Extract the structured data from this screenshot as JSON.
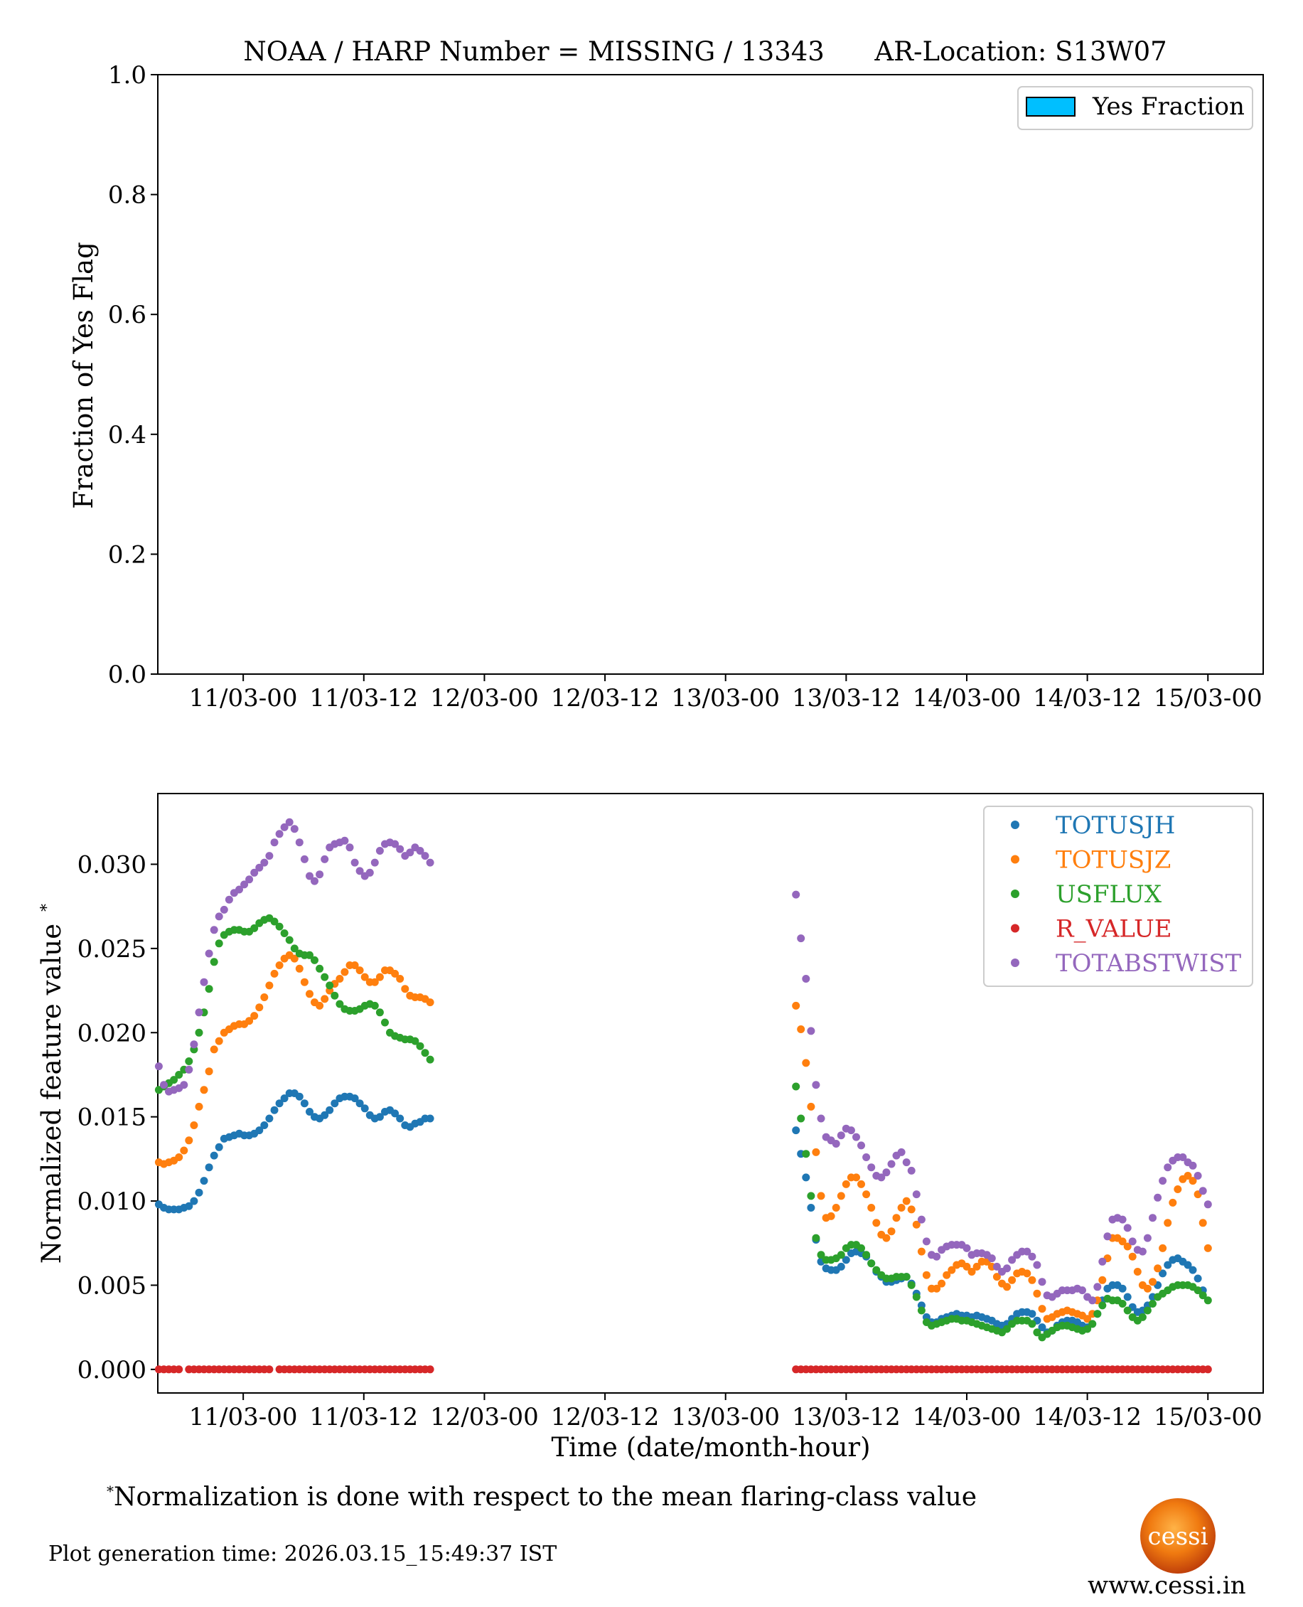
{
  "colors": {
    "TOTUSJH": "#1f77b4",
    "TOTUSJZ": "#ff7f0e",
    "USFLUX": "#2ca02c",
    "R_VALUE": "#d62728",
    "TOTABSTWIST": "#9467bd",
    "yes_fraction": "#00bfff"
  },
  "chart_data": [
    {
      "type": "bar",
      "title": "NOAA / HARP Number = MISSING / 13343      AR-Location: S13W07",
      "xlabel": "",
      "ylabel": "Fraction of Yes Flag",
      "ylim": [
        0,
        1.0
      ],
      "yticks": [
        "0.0",
        "0.2",
        "0.4",
        "0.6",
        "0.8",
        "1.0"
      ],
      "xticks": [
        "11/03-00",
        "11/03-12",
        "12/03-00",
        "12/03-12",
        "13/03-00",
        "13/03-12",
        "14/03-00",
        "14/03-12",
        "15/03-00"
      ],
      "xtick_hours": [
        0,
        12,
        24,
        36,
        48,
        60,
        72,
        84,
        96
      ],
      "xlim_hours": [
        -8.5,
        101.5
      ],
      "legend": [
        "Yes Fraction"
      ],
      "legend_position": "top-right",
      "values": []
    },
    {
      "type": "scatter",
      "title": "",
      "xlabel": "Time (date/month-hour)",
      "ylabel": "Normalized feature value",
      "ylabel_sup": "*",
      "ylim": [
        -0.0014,
        0.0342
      ],
      "yticks": [
        "0.000",
        "0.005",
        "0.010",
        "0.015",
        "0.020",
        "0.025",
        "0.030"
      ],
      "xticks": [
        "11/03-00",
        "11/03-12",
        "12/03-00",
        "12/03-12",
        "13/03-00",
        "13/03-12",
        "14/03-00",
        "14/03-12",
        "15/03-00"
      ],
      "xtick_hours": [
        0,
        12,
        24,
        36,
        48,
        60,
        72,
        84,
        96
      ],
      "xlim_hours": [
        -8.5,
        101.5
      ],
      "legend_position": "top-right",
      "legend": [
        "TOTUSJH",
        "TOTUSJZ",
        "USFLUX",
        "R_VALUE",
        "TOTABSTWIST"
      ],
      "segments": [
        {
          "x_start": -8.4,
          "x_step": 0.5,
          "series": {
            "TOTUSJH": [
              0.0098,
              0.0096,
              0.0095,
              0.0095,
              0.0095,
              0.0096,
              0.0097,
              0.01,
              0.0105,
              0.0112,
              0.012,
              0.0127,
              0.0132,
              0.0137,
              0.0138,
              0.0139,
              0.014,
              0.0139,
              0.0139,
              0.014,
              0.0142,
              0.0145,
              0.0149,
              0.0154,
              0.0158,
              0.0161,
              0.0164,
              0.0164,
              0.0162,
              0.0158,
              0.0153,
              0.015,
              0.0149,
              0.0151,
              0.0154,
              0.0158,
              0.0161,
              0.0162,
              0.0162,
              0.0161,
              0.0158,
              0.0155,
              0.0151,
              0.0149,
              0.015,
              0.0153,
              0.0154,
              0.0152,
              0.0149,
              0.0145,
              0.0144,
              0.0146,
              0.0147,
              0.0149,
              0.0149
            ],
            "TOTUSJZ": [
              0.0123,
              0.0122,
              0.0123,
              0.0124,
              0.0126,
              0.013,
              0.0136,
              0.0145,
              0.0156,
              0.0166,
              0.0177,
              0.019,
              0.0195,
              0.02,
              0.0202,
              0.0204,
              0.0205,
              0.0205,
              0.0207,
              0.021,
              0.0215,
              0.0221,
              0.0228,
              0.0235,
              0.024,
              0.0244,
              0.0246,
              0.0244,
              0.0238,
              0.023,
              0.0223,
              0.0218,
              0.0216,
              0.022,
              0.0225,
              0.0229,
              0.0232,
              0.0236,
              0.024,
              0.024,
              0.0237,
              0.0233,
              0.023,
              0.023,
              0.0233,
              0.0237,
              0.0237,
              0.0235,
              0.0232,
              0.0226,
              0.0222,
              0.0221,
              0.0221,
              0.022,
              0.0218
            ],
            "USFLUX": [
              0.0166,
              0.0168,
              0.017,
              0.0172,
              0.0175,
              0.0178,
              0.0183,
              0.019,
              0.02,
              0.0212,
              0.0226,
              0.0242,
              0.0253,
              0.0258,
              0.026,
              0.0261,
              0.0261,
              0.026,
              0.026,
              0.0262,
              0.0265,
              0.0267,
              0.0268,
              0.0266,
              0.0263,
              0.0259,
              0.0255,
              0.025,
              0.0247,
              0.0246,
              0.0246,
              0.0243,
              0.0238,
              0.0233,
              0.0228,
              0.0222,
              0.0217,
              0.0214,
              0.0213,
              0.0213,
              0.0214,
              0.0216,
              0.0217,
              0.0216,
              0.0212,
              0.0206,
              0.02,
              0.0198,
              0.0197,
              0.0196,
              0.0196,
              0.0195,
              0.0192,
              0.0188,
              0.0184
            ],
            "R_VALUE": [
              0,
              0,
              0,
              0,
              0,
              null,
              0,
              0,
              0,
              0,
              0,
              0,
              0,
              0,
              0,
              0,
              0,
              0,
              0,
              0,
              0,
              0,
              0,
              null,
              0,
              0,
              0,
              0,
              0,
              0,
              0,
              0,
              0,
              0,
              0,
              0,
              0,
              0,
              0,
              0,
              0,
              0,
              0,
              0,
              0,
              0,
              0,
              0,
              0,
              0,
              0,
              0,
              0,
              0,
              0
            ],
            "TOTABSTWIST": [
              0.018,
              0.0169,
              0.0165,
              0.0166,
              0.0167,
              0.0169,
              0.0178,
              0.0193,
              0.0212,
              0.023,
              0.0247,
              0.0261,
              0.0269,
              0.0273,
              0.0279,
              0.0283,
              0.0285,
              0.0288,
              0.0291,
              0.0295,
              0.0298,
              0.0301,
              0.0305,
              0.0313,
              0.0318,
              0.0322,
              0.0325,
              0.0321,
              0.0313,
              0.0303,
              0.0293,
              0.029,
              0.0294,
              0.0303,
              0.031,
              0.0312,
              0.0313,
              0.0314,
              0.031,
              0.0301,
              0.0296,
              0.0293,
              0.0295,
              0.0301,
              0.0308,
              0.0312,
              0.0313,
              0.0312,
              0.0309,
              0.0305,
              0.0307,
              0.031,
              0.0308,
              0.0305,
              0.0301
            ]
          }
        },
        {
          "x_start": 55.0,
          "x_step": 0.5,
          "series": {
            "TOTUSJH": [
              0.0142,
              0.0128,
              0.0114,
              0.0096,
              0.0077,
              0.0064,
              0.006,
              0.0059,
              0.0059,
              0.0061,
              0.0065,
              0.0069,
              0.007,
              0.0069,
              0.0067,
              0.0063,
              0.0058,
              0.0055,
              0.0052,
              0.0052,
              0.0053,
              0.0054,
              0.0055,
              0.0051,
              0.0045,
              0.0038,
              0.0031,
              0.0028,
              0.0028,
              0.003,
              0.0031,
              0.0032,
              0.0033,
              0.0032,
              0.0032,
              0.0031,
              0.0032,
              0.0031,
              0.003,
              0.0029,
              0.0027,
              0.0026,
              0.0027,
              0.003,
              0.0033,
              0.0034,
              0.0034,
              0.0033,
              0.0029,
              0.0025,
              0.0022,
              0.0023,
              0.0026,
              0.0028,
              0.0029,
              0.0029,
              0.0028,
              0.0026,
              0.0025,
              0.0027,
              0.0033,
              0.0041,
              0.0048,
              0.005,
              0.005,
              0.0048,
              0.0043,
              0.0037,
              0.0034,
              0.0035,
              0.0038,
              0.0043,
              0.005,
              0.0057,
              0.0062,
              0.0065,
              0.0066,
              0.0064,
              0.0062,
              0.0059,
              0.0054,
              0.0047
            ],
            "TOTUSJZ": [
              0.0216,
              0.0202,
              0.0182,
              0.0156,
              0.0129,
              0.0103,
              0.009,
              0.0091,
              0.0096,
              0.0103,
              0.011,
              0.0114,
              0.0114,
              0.011,
              0.0104,
              0.0096,
              0.0087,
              0.008,
              0.0078,
              0.0082,
              0.009,
              0.0096,
              0.01,
              0.0095,
              0.0086,
              0.007,
              0.0056,
              0.0048,
              0.0048,
              0.0051,
              0.0056,
              0.0059,
              0.0062,
              0.0063,
              0.0061,
              0.0058,
              0.0061,
              0.0064,
              0.0064,
              0.0061,
              0.0055,
              0.0051,
              0.0049,
              0.0053,
              0.0057,
              0.0058,
              0.0057,
              0.0053,
              0.0045,
              0.0036,
              0.003,
              0.0031,
              0.0033,
              0.0034,
              0.0035,
              0.0034,
              0.0033,
              0.0032,
              0.003,
              0.0033,
              0.0041,
              0.0053,
              0.0066,
              0.0078,
              0.0078,
              0.0076,
              0.0073,
              0.0067,
              0.0058,
              0.005,
              0.0048,
              0.0052,
              0.006,
              0.0072,
              0.0087,
              0.0099,
              0.0107,
              0.0113,
              0.0115,
              0.0112,
              0.0104,
              0.0087,
              0.0072
            ],
            "USFLUX": [
              0.0168,
              0.0149,
              0.0128,
              0.0103,
              0.0078,
              0.0068,
              0.0065,
              0.0065,
              0.0066,
              0.0068,
              0.0072,
              0.0074,
              0.0074,
              0.0072,
              0.0068,
              0.0063,
              0.0059,
              0.0056,
              0.0054,
              0.0054,
              0.0055,
              0.0055,
              0.0055,
              0.005,
              0.0043,
              0.0035,
              0.0028,
              0.0026,
              0.0027,
              0.0028,
              0.0029,
              0.003,
              0.003,
              0.0029,
              0.0029,
              0.0028,
              0.0027,
              0.0026,
              0.0025,
              0.0024,
              0.0023,
              0.0022,
              0.0024,
              0.0027,
              0.0029,
              0.0029,
              0.0029,
              0.0027,
              0.0022,
              0.0019,
              0.0021,
              0.0023,
              0.0025,
              0.0026,
              0.0026,
              0.0025,
              0.0024,
              0.0023,
              0.0024,
              0.0027,
              0.0033,
              0.0038,
              0.0042,
              0.0041,
              0.0041,
              0.0039,
              0.0035,
              0.0031,
              0.0029,
              0.0031,
              0.0035,
              0.0039,
              0.0043,
              0.0045,
              0.0047,
              0.0049,
              0.005,
              0.005,
              0.005,
              0.0049,
              0.0047,
              0.0044,
              0.0041
            ],
            "R_VALUE": [
              0,
              0,
              0,
              0,
              0,
              0,
              0,
              0,
              0,
              0,
              0,
              0,
              0,
              0,
              0,
              0,
              0,
              0,
              0,
              0,
              0,
              0,
              0,
              0,
              0,
              0,
              0,
              0,
              0,
              0,
              0,
              0,
              0,
              0,
              0,
              0,
              0,
              0,
              0,
              0,
              0,
              0,
              0,
              0,
              0,
              0,
              0,
              0,
              0,
              0,
              0,
              0,
              0,
              0,
              0,
              0,
              0,
              0,
              0,
              0,
              0,
              0,
              0,
              0,
              0,
              0,
              0,
              0,
              0,
              0,
              0,
              0,
              0,
              0,
              0,
              0,
              0,
              0,
              0,
              0,
              0,
              0,
              0
            ],
            "TOTABSTWIST": [
              0.0282,
              0.0256,
              0.0232,
              0.0201,
              0.0169,
              0.0149,
              0.0138,
              0.0136,
              0.0134,
              0.0139,
              0.0143,
              0.0142,
              0.0138,
              0.0133,
              0.0126,
              0.012,
              0.0115,
              0.0114,
              0.0117,
              0.0122,
              0.0127,
              0.0129,
              0.0123,
              0.0118,
              0.0104,
              0.0089,
              0.0076,
              0.0068,
              0.0067,
              0.0071,
              0.0073,
              0.0074,
              0.0074,
              0.0074,
              0.0072,
              0.0068,
              0.0069,
              0.0069,
              0.0068,
              0.0066,
              0.0061,
              0.0058,
              0.006,
              0.0065,
              0.0068,
              0.007,
              0.007,
              0.0067,
              0.0062,
              0.0052,
              0.0044,
              0.0043,
              0.0045,
              0.0047,
              0.0047,
              0.0047,
              0.0048,
              0.0047,
              0.0043,
              0.0041,
              0.0049,
              0.0064,
              0.0079,
              0.0089,
              0.009,
              0.0089,
              0.0084,
              0.0076,
              0.0071,
              0.007,
              0.0078,
              0.009,
              0.0102,
              0.0112,
              0.012,
              0.0124,
              0.0126,
              0.0126,
              0.0123,
              0.0121,
              0.0115,
              0.0106,
              0.0098
            ]
          }
        }
      ]
    }
  ],
  "footnote": {
    "sup": "*",
    "text": "Normalization is done with respect to the mean flaring-class value"
  },
  "generation_time": "Plot generation time: 2026.03.15_15:49:37 IST",
  "logo": {
    "text": "cessi"
  },
  "website": "www.cessi.in"
}
